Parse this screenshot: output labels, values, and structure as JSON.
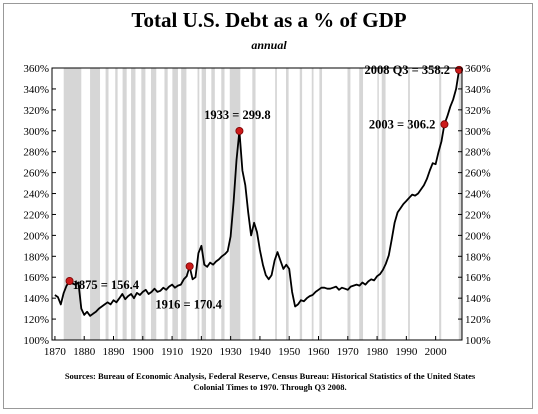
{
  "chart_data": {
    "type": "line",
    "title": "Total U.S. Debt as a % of GDP",
    "subtitle": "annual",
    "source_lines": [
      "Sources: Bureau of Economic Analysis, Federal Reserve, Census Bureau: Historical Statistics of the United States",
      "Colonial Times to 1970.   Through Q3 2008."
    ],
    "xlim": [
      1869,
      2009
    ],
    "ylim": [
      100,
      360
    ],
    "x_ticks": [
      1870,
      1880,
      1890,
      1900,
      1910,
      1920,
      1930,
      1940,
      1950,
      1960,
      1970,
      1980,
      1990,
      2000
    ],
    "y_ticks": [
      100,
      120,
      140,
      160,
      180,
      200,
      220,
      240,
      260,
      280,
      300,
      320,
      340,
      360
    ],
    "y_tick_suffix": "%",
    "grid": false,
    "recession_periods": [
      [
        1873.0,
        1879.0
      ],
      [
        1882.0,
        1885.4
      ],
      [
        1887.3,
        1888.3
      ],
      [
        1890.6,
        1891.4
      ],
      [
        1893.1,
        1894.5
      ],
      [
        1896.0,
        1897.5
      ],
      [
        1899.5,
        1900.9
      ],
      [
        1902.8,
        1904.6
      ],
      [
        1907.4,
        1908.5
      ],
      [
        1910.1,
        1912.0
      ],
      [
        1913.1,
        1914.9
      ],
      [
        1918.7,
        1919.3
      ],
      [
        1920.1,
        1921.6
      ],
      [
        1923.4,
        1924.6
      ],
      [
        1926.8,
        1927.9
      ],
      [
        1929.7,
        1933.3
      ],
      [
        1937.4,
        1938.5
      ],
      [
        1945.2,
        1945.8
      ],
      [
        1948.9,
        1949.8
      ],
      [
        1953.6,
        1954.4
      ],
      [
        1957.7,
        1958.3
      ],
      [
        1960.3,
        1961.2
      ],
      [
        1969.9,
        1970.9
      ],
      [
        1973.9,
        1975.2
      ],
      [
        1980.1,
        1980.6
      ],
      [
        1981.6,
        1982.9
      ],
      [
        1990.6,
        1991.2
      ],
      [
        2001.2,
        2001.9
      ],
      [
        2007.9,
        2009.0
      ]
    ],
    "series": [
      {
        "color": "#000000",
        "x": [
          1870,
          1871,
          1872,
          1873,
          1874,
          1875,
          1876,
          1877,
          1878,
          1879,
          1880,
          1881,
          1882,
          1883,
          1884,
          1885,
          1886,
          1887,
          1888,
          1889,
          1890,
          1891,
          1892,
          1893,
          1894,
          1895,
          1896,
          1897,
          1898,
          1899,
          1900,
          1901,
          1902,
          1903,
          1904,
          1905,
          1906,
          1907,
          1908,
          1909,
          1910,
          1911,
          1912,
          1913,
          1914,
          1915,
          1916,
          1917,
          1918,
          1919,
          1920,
          1921,
          1922,
          1923,
          1924,
          1925,
          1926,
          1927,
          1928,
          1929,
          1930,
          1931,
          1932,
          1933,
          1934,
          1935,
          1936,
          1937,
          1938,
          1939,
          1940,
          1941,
          1942,
          1943,
          1944,
          1945,
          1946,
          1947,
          1948,
          1949,
          1950,
          1951,
          1952,
          1953,
          1954,
          1955,
          1956,
          1957,
          1958,
          1959,
          1960,
          1961,
          1962,
          1963,
          1964,
          1965,
          1966,
          1967,
          1968,
          1969,
          1970,
          1971,
          1972,
          1973,
          1974,
          1975,
          1976,
          1977,
          1978,
          1979,
          1980,
          1981,
          1982,
          1983,
          1984,
          1985,
          1986,
          1987,
          1988,
          1989,
          1990,
          1991,
          1992,
          1993,
          1994,
          1995,
          1996,
          1997,
          1998,
          1999,
          2000,
          2001,
          2002,
          2003,
          2004,
          2005,
          2006,
          2007,
          2008
        ],
        "values": [
          143,
          141,
          134,
          145,
          152,
          156.4,
          154,
          153,
          155,
          130,
          124,
          127,
          123,
          125,
          127,
          130,
          132,
          134,
          136,
          134,
          138,
          136,
          140,
          144,
          139,
          142,
          144,
          140,
          145,
          143,
          146,
          148,
          144,
          146,
          149,
          146,
          147,
          150,
          148,
          151,
          153,
          150,
          152,
          153,
          158,
          161,
          170.4,
          158,
          160,
          183,
          190,
          172,
          170,
          174,
          172,
          175,
          177,
          180,
          182,
          185,
          199,
          232,
          272,
          299.8,
          262,
          248,
          222,
          200,
          212,
          203,
          186,
          172,
          162,
          158,
          162,
          176,
          184,
          176,
          168,
          172,
          168,
          146,
          132,
          134,
          138,
          137,
          140,
          142,
          143,
          146,
          148,
          150,
          150,
          149,
          149,
          150,
          151,
          148,
          150,
          149,
          148,
          151,
          152,
          153,
          152,
          155,
          153,
          156,
          158,
          157,
          161,
          163,
          167,
          173,
          181,
          196,
          212,
          222,
          226,
          230,
          233,
          236,
          239,
          238,
          240,
          244,
          248,
          254,
          262,
          269,
          268,
          280,
          290,
          306.2,
          314,
          323,
          330,
          340,
          358.2
        ]
      }
    ],
    "annotations": [
      {
        "text": "1875 = 156.4",
        "x": 1875,
        "y": 156.4,
        "anchor": "below-right"
      },
      {
        "text": "1916 = 170.4",
        "x": 1916,
        "y": 170.4,
        "anchor": "below"
      },
      {
        "text": "1933 = 299.8",
        "x": 1933,
        "y": 299.8,
        "anchor": "above-left"
      },
      {
        "text": "2003 = 306.2",
        "x": 2003,
        "y": 306.2,
        "anchor": "left"
      },
      {
        "text": "2008 Q3 = 358.2",
        "x": 2008,
        "y": 358.2,
        "anchor": "left"
      }
    ],
    "colors": {
      "line": "#000000",
      "recession_band": "#d6d6d6",
      "marker_fill": "#cc1a1a",
      "marker_stroke": "#7a0000"
    }
  }
}
